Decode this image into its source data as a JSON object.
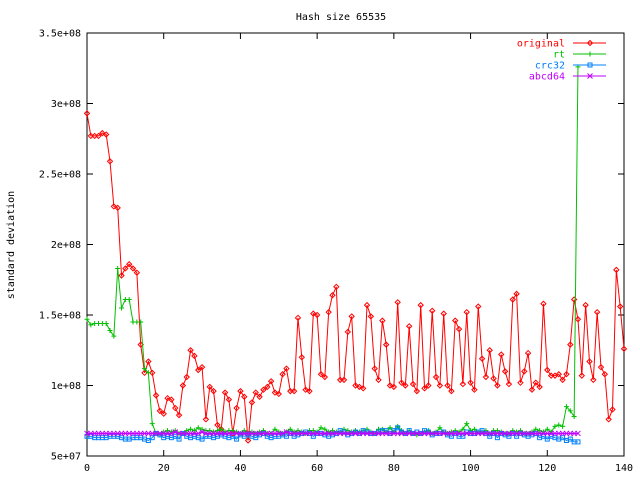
{
  "chart_data": {
    "type": "line",
    "title": "Hash size 65535",
    "xlabel": "",
    "ylabel": "standard deviation",
    "xlim": [
      0,
      140
    ],
    "ylim": [
      50000000,
      350000000
    ],
    "xticks": [
      0,
      20,
      40,
      60,
      80,
      100,
      120,
      140
    ],
    "xtick_labels": [
      "0",
      "20",
      "40",
      "60",
      "80",
      "100",
      "120",
      "140"
    ],
    "yticks": [
      50000000,
      100000000,
      150000000,
      200000000,
      250000000,
      300000000,
      350000000
    ],
    "ytick_labels": [
      "5e+07",
      "1e+08",
      "1.5e+08",
      "2e+08",
      "2.5e+08",
      "3e+08",
      "3.5e+08"
    ],
    "grid": false,
    "legend_position": "top-right",
    "series": [
      {
        "name": "original",
        "color": "#ff0000",
        "marker": "diamond",
        "y": [
          293000000,
          277000000,
          277000000,
          277000000,
          279000000,
          278000000,
          259000000,
          227000000,
          226000000,
          178000000,
          183000000,
          186000000,
          183000000,
          180000000,
          129000000,
          109000000,
          117000000,
          109000000,
          93000000,
          82000000,
          80000000,
          91000000,
          90000000,
          84000000,
          79000000,
          100000000,
          106000000,
          125000000,
          121000000,
          111000000,
          113000000,
          76000000,
          99000000,
          96000000,
          72000000,
          69000000,
          95000000,
          90000000,
          66000000,
          84000000,
          96000000,
          92000000,
          61000000,
          88000000,
          95000000,
          92000000,
          97000000,
          99000000,
          103000000,
          95000000,
          94000000,
          108000000,
          112000000,
          96000000,
          96000000,
          148000000,
          120000000,
          97000000,
          96000000,
          151000000,
          150000000,
          108000000,
          106000000,
          152000000,
          164000000,
          170000000,
          104000000,
          104000000,
          138000000,
          149000000,
          100000000,
          99000000,
          98000000,
          157000000,
          149000000,
          112000000,
          104000000,
          146000000,
          129000000,
          100000000,
          99000000,
          159000000,
          102000000,
          100000000,
          142000000,
          101000000,
          96000000,
          157000000,
          98000000,
          100000000,
          153000000,
          106000000,
          100000000,
          151000000,
          100000000,
          96000000,
          146000000,
          140000000,
          101000000,
          152000000,
          102000000,
          97000000,
          156000000,
          119000000,
          106000000,
          125000000,
          105000000,
          100000000,
          122000000,
          110000000,
          101000000,
          161000000,
          165000000,
          102000000,
          110000000,
          123000000,
          97000000,
          102000000,
          99000000,
          158000000,
          111000000,
          107000000,
          107000000,
          108000000,
          104000000,
          108000000,
          129000000,
          161000000,
          147000000,
          107000000,
          157000000,
          117000000,
          104000000,
          152000000,
          113000000,
          108000000,
          76000000,
          83000000,
          182000000,
          156000000,
          126000000
        ]
      },
      {
        "name": "rt",
        "color": "#00c000",
        "marker": "plus",
        "y": [
          147000000,
          143000000,
          144000000,
          144000000,
          144000000,
          144000000,
          139000000,
          135000000,
          183000000,
          155000000,
          161000000,
          161000000,
          145000000,
          145000000,
          145000000,
          112000000,
          109000000,
          73000000,
          66000000,
          65000000,
          67000000,
          68000000,
          67000000,
          68000000,
          66000000,
          66000000,
          68000000,
          69000000,
          68000000,
          70000000,
          69000000,
          68000000,
          68000000,
          67000000,
          68000000,
          69000000,
          67000000,
          68000000,
          68000000,
          67000000,
          66000000,
          68000000,
          66000000,
          67000000,
          66000000,
          67000000,
          68000000,
          66000000,
          66000000,
          69000000,
          67000000,
          66000000,
          67000000,
          69000000,
          67000000,
          68000000,
          67000000,
          66000000,
          68000000,
          68000000,
          67000000,
          70000000,
          69000000,
          67000000,
          68000000,
          67000000,
          67000000,
          69000000,
          68000000,
          67000000,
          68000000,
          67000000,
          68000000,
          69000000,
          67000000,
          66000000,
          69000000,
          69000000,
          67000000,
          70000000,
          67000000,
          71000000,
          68000000,
          66000000,
          68000000,
          66000000,
          65000000,
          66000000,
          67000000,
          68000000,
          66000000,
          67000000,
          70000000,
          67000000,
          66000000,
          67000000,
          68000000,
          67000000,
          69000000,
          73000000,
          68000000,
          69000000,
          67000000,
          67000000,
          68000000,
          66000000,
          68000000,
          68000000,
          67000000,
          66000000,
          66000000,
          68000000,
          67000000,
          68000000,
          66000000,
          66000000,
          67000000,
          69000000,
          68000000,
          67000000,
          69000000,
          67000000,
          71000000,
          72000000,
          71000000,
          85000000,
          82000000,
          78000000,
          326000000
        ]
      },
      {
        "name": "crc32",
        "color": "#0080ff",
        "marker": "square",
        "y": [
          64000000,
          64000000,
          63000000,
          63000000,
          63000000,
          63000000,
          64000000,
          64000000,
          64000000,
          63000000,
          62000000,
          62000000,
          63000000,
          63000000,
          63000000,
          62000000,
          61000000,
          63000000,
          66000000,
          65000000,
          63000000,
          64000000,
          63000000,
          64000000,
          62000000,
          66000000,
          64000000,
          63000000,
          64000000,
          63000000,
          62000000,
          64000000,
          64000000,
          63000000,
          64000000,
          65000000,
          64000000,
          63000000,
          64000000,
          62000000,
          65000000,
          64000000,
          65000000,
          64000000,
          63000000,
          65000000,
          66000000,
          64000000,
          63000000,
          64000000,
          64000000,
          65000000,
          64000000,
          66000000,
          64000000,
          65000000,
          66000000,
          67000000,
          66000000,
          64000000,
          66000000,
          66000000,
          65000000,
          64000000,
          65000000,
          66000000,
          68000000,
          67000000,
          65000000,
          66000000,
          67000000,
          66000000,
          68000000,
          67000000,
          66000000,
          66000000,
          67000000,
          68000000,
          68000000,
          66000000,
          68000000,
          70000000,
          67000000,
          66000000,
          68000000,
          66000000,
          67000000,
          66000000,
          68000000,
          67000000,
          65000000,
          66000000,
          66000000,
          67000000,
          65000000,
          64000000,
          66000000,
          64000000,
          64000000,
          67000000,
          66000000,
          66000000,
          67000000,
          68000000,
          66000000,
          64000000,
          66000000,
          63000000,
          66000000,
          65000000,
          64000000,
          66000000,
          64000000,
          66000000,
          65000000,
          64000000,
          65000000,
          66000000,
          63000000,
          64000000,
          62000000,
          64000000,
          63000000,
          62000000,
          63000000,
          61000000,
          62000000,
          60000000,
          60000000
        ]
      },
      {
        "name": "abcd64",
        "color": "#c000ff",
        "marker": "cross",
        "y": [
          66000000,
          66000000,
          66000000,
          66000000,
          66000000,
          66000000,
          66000000,
          66000000,
          66000000,
          66000000,
          66000000,
          66000000,
          66000000,
          66000000,
          66000000,
          66000000,
          66000000,
          66000000,
          66000000,
          66000000,
          66000000,
          66000000,
          66000000,
          67000000,
          66000000,
          66000000,
          66000000,
          66000000,
          66000000,
          66000000,
          67000000,
          66000000,
          66000000,
          66000000,
          66000000,
          66000000,
          66000000,
          66000000,
          66000000,
          66000000,
          66000000,
          66000000,
          66000000,
          66000000,
          66000000,
          66000000,
          66000000,
          66000000,
          66000000,
          66000000,
          66000000,
          66000000,
          67000000,
          66000000,
          66000000,
          66000000,
          66000000,
          66000000,
          66000000,
          66000000,
          66000000,
          66000000,
          66000000,
          66000000,
          66000000,
          66000000,
          66000000,
          66000000,
          66000000,
          66000000,
          66000000,
          66000000,
          66000000,
          66000000,
          66000000,
          66000000,
          66000000,
          66000000,
          66000000,
          66000000,
          66000000,
          66000000,
          66000000,
          66000000,
          66000000,
          66000000,
          66000000,
          66000000,
          66000000,
          66000000,
          66000000,
          66000000,
          66000000,
          66000000,
          66000000,
          66000000,
          66000000,
          66000000,
          66000000,
          66000000,
          66000000,
          66000000,
          66000000,
          66000000,
          66000000,
          66000000,
          66000000,
          66000000,
          66000000,
          66000000,
          66000000,
          66000000,
          66000000,
          66000000,
          66000000,
          66000000,
          66000000,
          66000000,
          66000000,
          66000000,
          66000000,
          66000000,
          66000000,
          66000000,
          66000000,
          66000000,
          66000000,
          66000000,
          66000000
        ]
      }
    ]
  }
}
